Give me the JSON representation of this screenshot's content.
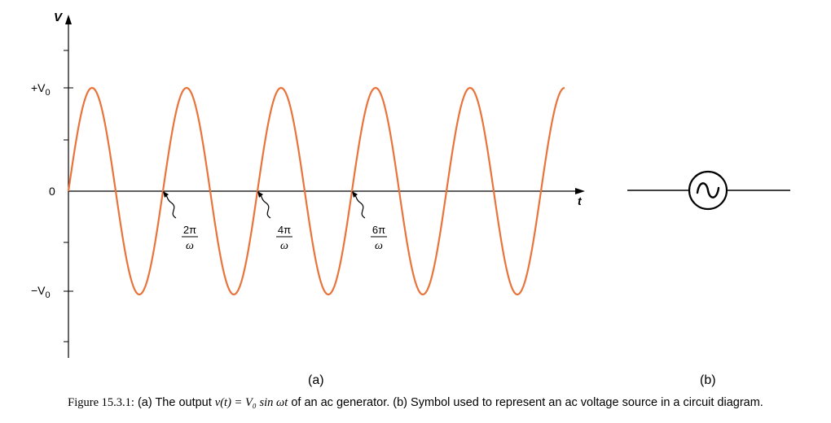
{
  "waveform": {
    "y_axis_label": "V",
    "x_axis_label": "t",
    "y_ticks": {
      "positive_prefix": "+V",
      "positive_sub": "0",
      "zero": "0",
      "negative_prefix": "−V",
      "negative_sub": "0"
    },
    "crossing_labels": [
      {
        "numerator": "2π",
        "denominator": "ω"
      },
      {
        "numerator": "4π",
        "denominator": "ω"
      },
      {
        "numerator": "6π",
        "denominator": "ω"
      }
    ],
    "wave_color": "#e8743b",
    "periods_shown": 5.25,
    "panel_label": "(a)"
  },
  "symbol": {
    "icon": "ac-source-icon",
    "panel_label": "(b)"
  },
  "caption": {
    "figure_number": "Figure 15.3.1:",
    "text_before": " (a) The output ",
    "math": "v(t) = V₀ sin ωt",
    "text_after": " of an ac generator. (b) Symbol used to represent an ac voltage source in a circuit diagram."
  }
}
